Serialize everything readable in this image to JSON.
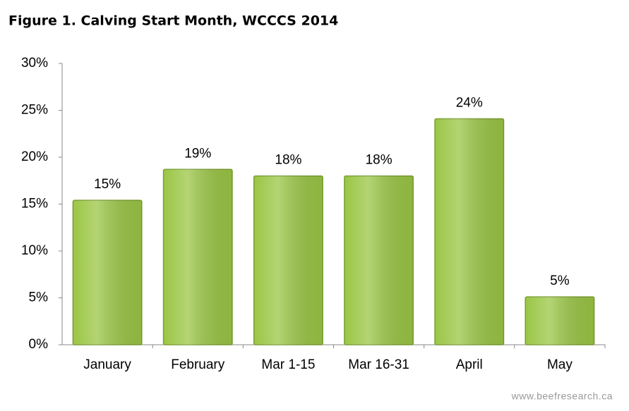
{
  "chart_data": {
    "type": "bar",
    "title": "Figure 1. Calving Start Month, WCCCS 2014",
    "categories": [
      "January",
      "February",
      "Mar 1-15",
      "Mar 16-31",
      "April",
      "May"
    ],
    "values": [
      15.4,
      18.7,
      18.0,
      18.0,
      24.1,
      5.1
    ],
    "value_labels": [
      "15%",
      "19%",
      "18%",
      "18%",
      "24%",
      "5%"
    ],
    "color": "#9bc645",
    "ylim": [
      0,
      30
    ],
    "yticks": [
      {
        "value": 0,
        "label": "0%"
      },
      {
        "value": 5,
        "label": "5%"
      },
      {
        "value": 10,
        "label": "10%"
      },
      {
        "value": 15,
        "label": "15%"
      },
      {
        "value": 20,
        "label": "20%"
      },
      {
        "value": 25,
        "label": "25%"
      },
      {
        "value": 30,
        "label": "30%"
      }
    ],
    "grid": false,
    "source": "www.beefresearch.ca"
  }
}
